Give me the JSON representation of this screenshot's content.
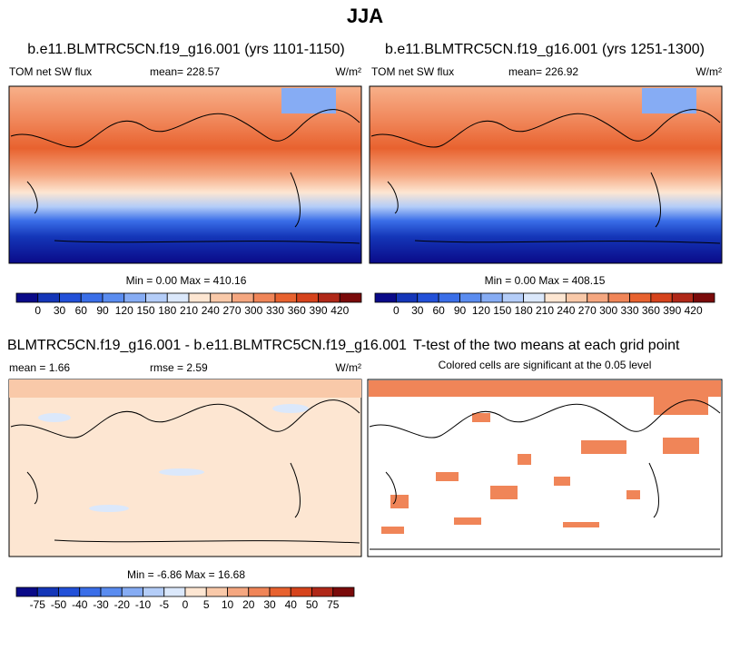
{
  "title": "JJA",
  "panels": [
    {
      "title": "b.e11.BLMTRC5CN.f19_g16.001 (yrs 1101-1150)",
      "field": "TOM net SW flux",
      "mean": "mean= 228.57",
      "units": "W/m²",
      "minmax": "Min =   0.00 Max = 410.16",
      "colorbar": {
        "levels": [
          0,
          30,
          60,
          90,
          120,
          150,
          180,
          210,
          240,
          270,
          300,
          330,
          360,
          390,
          420
        ],
        "colors": [
          "#0a0a88",
          "#1436b8",
          "#2250d8",
          "#3a6ee8",
          "#5a8cf0",
          "#86acf4",
          "#b4cdf8",
          "#dbe8fb",
          "#fde6d2",
          "#f9c9a9",
          "#f5a780",
          "#f08558",
          "#e8622f",
          "#d6431c",
          "#b02818",
          "#7a0a0a"
        ]
      }
    },
    {
      "title": "b.e11.BLMTRC5CN.f19_g16.001 (yrs 1251-1300)",
      "field": "TOM net SW flux",
      "mean": "mean= 226.92",
      "units": "W/m²",
      "minmax": "Min =   0.00 Max = 408.15",
      "colorbar": {
        "levels": [
          0,
          30,
          60,
          90,
          120,
          150,
          180,
          210,
          240,
          270,
          300,
          330,
          360,
          390,
          420
        ],
        "colors": [
          "#0a0a88",
          "#1436b8",
          "#2250d8",
          "#3a6ee8",
          "#5a8cf0",
          "#86acf4",
          "#b4cdf8",
          "#dbe8fb",
          "#fde6d2",
          "#f9c9a9",
          "#f5a780",
          "#f08558",
          "#e8622f",
          "#d6431c",
          "#b02818",
          "#7a0a0a"
        ]
      }
    },
    {
      "title": "BLMTRC5CN.f19_g16.001 - b.e11.BLMTRC5CN.f19_g16.001",
      "mean": "mean =   1.66",
      "rmse": "rmse =   2.59",
      "units": "W/m²",
      "minmax": "Min =  -6.86 Max =  16.68",
      "colorbar": {
        "levels": [
          -75,
          -50,
          -40,
          -30,
          -20,
          -10,
          -5,
          0,
          5,
          10,
          20,
          30,
          40,
          50,
          75
        ],
        "colors": [
          "#0a0a88",
          "#1436b8",
          "#2250d8",
          "#3a6ee8",
          "#5a8cf0",
          "#86acf4",
          "#b4cdf8",
          "#dbe8fb",
          "#fde6d2",
          "#f9c9a9",
          "#f5a780",
          "#f08558",
          "#e8622f",
          "#d6431c",
          "#b02818",
          "#7a0a0a"
        ]
      }
    },
    {
      "title": "T-test of the two means at each grid point",
      "note": "Colored cells are significant at the 0.05 level"
    }
  ]
}
